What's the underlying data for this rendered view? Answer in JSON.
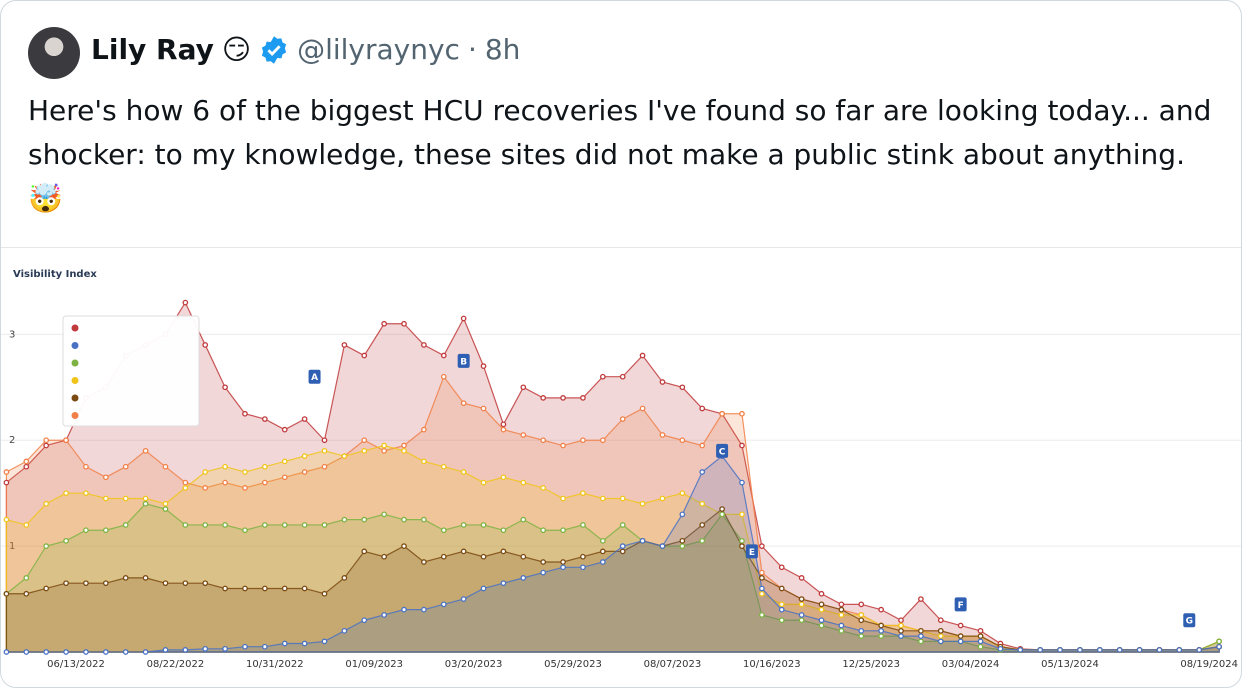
{
  "tweet": {
    "author_name": "Lily Ray",
    "author_emoji": "😏",
    "handle": "@lilyraynyc",
    "separator": "·",
    "time": "8h",
    "text": "Here's how 6 of the biggest HCU recoveries I've found so far are looking today... and shocker: to my knowledge, these sites did not make a public stink about anything. 🤯"
  },
  "chart_data": {
    "type": "area",
    "title": "Visibility Index",
    "x": [
      "04/25/2022",
      "05/09/2022",
      "05/23/2022",
      "06/06/2022",
      "06/20/2022",
      "07/04/2022",
      "07/18/2022",
      "08/01/2022",
      "08/15/2022",
      "08/29/2022",
      "09/12/2022",
      "09/26/2022",
      "10/10/2022",
      "10/24/2022",
      "11/07/2022",
      "11/21/2022",
      "12/05/2022",
      "12/19/2022",
      "01/02/2023",
      "01/16/2023",
      "01/30/2023",
      "02/13/2023",
      "02/27/2023",
      "03/13/2023",
      "03/27/2023",
      "04/10/2023",
      "04/24/2023",
      "05/08/2023",
      "05/22/2023",
      "06/05/2023",
      "06/19/2023",
      "07/03/2023",
      "07/17/2023",
      "07/31/2023",
      "08/14/2023",
      "08/28/2023",
      "09/11/2023",
      "09/25/2023",
      "10/09/2023",
      "10/23/2023",
      "11/06/2023",
      "11/20/2023",
      "12/04/2023",
      "12/18/2023",
      "01/01/2024",
      "01/15/2024",
      "01/29/2024",
      "02/12/2024",
      "02/26/2024",
      "03/11/2024",
      "03/25/2024",
      "04/08/2024",
      "04/22/2024",
      "05/06/2024",
      "05/20/2024",
      "06/03/2024",
      "06/17/2024",
      "07/01/2024",
      "07/15/2024",
      "07/29/2024",
      "08/12/2024",
      "08/26/2024"
    ],
    "series": [
      {
        "color": "#c0393b",
        "values": [
          1.6,
          1.75,
          1.95,
          2.0,
          2.4,
          2.5,
          2.8,
          2.9,
          3.0,
          3.3,
          2.9,
          2.5,
          2.25,
          2.2,
          2.1,
          2.2,
          2.0,
          2.9,
          2.8,
          3.1,
          3.1,
          2.9,
          2.8,
          3.15,
          2.7,
          2.15,
          2.5,
          2.4,
          2.4,
          2.4,
          2.6,
          2.6,
          2.8,
          2.55,
          2.5,
          2.3,
          2.25,
          1.95,
          1.0,
          0.8,
          0.7,
          0.55,
          0.45,
          0.45,
          0.4,
          0.3,
          0.5,
          0.3,
          0.25,
          0.2,
          0.08,
          0.03,
          0.02,
          0.02,
          0.02,
          0.02,
          0.02,
          0.02,
          0.02,
          0.02,
          0.02,
          0.1
        ]
      },
      {
        "color": "#f08048",
        "values": [
          1.7,
          1.8,
          2.0,
          2.0,
          1.75,
          1.65,
          1.75,
          1.9,
          1.75,
          1.6,
          1.55,
          1.6,
          1.55,
          1.6,
          1.65,
          1.7,
          1.75,
          1.85,
          2.0,
          1.9,
          1.95,
          2.1,
          2.6,
          2.35,
          2.3,
          2.1,
          2.05,
          2.0,
          1.95,
          2.0,
          2.0,
          2.2,
          2.3,
          2.05,
          2.0,
          1.95,
          2.25,
          2.25,
          0.75,
          0.6,
          0.5,
          0.45,
          0.4,
          0.35,
          0.25,
          0.25,
          0.2,
          0.2,
          0.15,
          0.15,
          0.05,
          0.02,
          0.02,
          0.02,
          0.02,
          0.02,
          0.02,
          0.02,
          0.02,
          0.02,
          0.02,
          0.05
        ]
      },
      {
        "color": "#f0c419",
        "values": [
          1.25,
          1.2,
          1.4,
          1.5,
          1.5,
          1.45,
          1.45,
          1.45,
          1.4,
          1.55,
          1.7,
          1.75,
          1.7,
          1.75,
          1.8,
          1.85,
          1.9,
          1.85,
          1.9,
          1.95,
          1.9,
          1.8,
          1.75,
          1.7,
          1.6,
          1.65,
          1.6,
          1.55,
          1.45,
          1.5,
          1.45,
          1.45,
          1.4,
          1.45,
          1.5,
          1.4,
          1.3,
          1.3,
          0.55,
          0.45,
          0.45,
          0.4,
          0.35,
          0.35,
          0.25,
          0.25,
          0.2,
          0.15,
          0.15,
          0.15,
          0.05,
          0.02,
          0.02,
          0.02,
          0.02,
          0.02,
          0.02,
          0.02,
          0.02,
          0.02,
          0.02,
          0.1
        ]
      },
      {
        "color": "#7cb342",
        "values": [
          0.55,
          0.7,
          1.0,
          1.05,
          1.15,
          1.15,
          1.2,
          1.4,
          1.35,
          1.2,
          1.2,
          1.2,
          1.15,
          1.2,
          1.2,
          1.2,
          1.2,
          1.25,
          1.25,
          1.3,
          1.25,
          1.25,
          1.15,
          1.2,
          1.2,
          1.15,
          1.25,
          1.15,
          1.15,
          1.2,
          1.05,
          1.2,
          1.05,
          1.0,
          1.0,
          1.05,
          1.3,
          1.05,
          0.35,
          0.3,
          0.3,
          0.25,
          0.2,
          0.15,
          0.15,
          0.15,
          0.1,
          0.1,
          0.1,
          0.05,
          0.02,
          0.02,
          0.02,
          0.02,
          0.02,
          0.02,
          0.02,
          0.02,
          0.02,
          0.02,
          0.02,
          0.1
        ]
      },
      {
        "color": "#7a4a12",
        "values": [
          0.55,
          0.55,
          0.6,
          0.65,
          0.65,
          0.65,
          0.7,
          0.7,
          0.65,
          0.65,
          0.65,
          0.6,
          0.6,
          0.6,
          0.6,
          0.6,
          0.55,
          0.7,
          0.95,
          0.9,
          1.0,
          0.85,
          0.9,
          0.95,
          0.9,
          0.95,
          0.9,
          0.85,
          0.85,
          0.9,
          0.95,
          0.95,
          1.05,
          1.0,
          1.05,
          1.2,
          1.35,
          1.0,
          0.7,
          0.6,
          0.5,
          0.45,
          0.4,
          0.3,
          0.25,
          0.2,
          0.2,
          0.2,
          0.15,
          0.15,
          0.05,
          0.02,
          0.02,
          0.02,
          0.02,
          0.02,
          0.02,
          0.02,
          0.02,
          0.02,
          0.02,
          0.05
        ]
      },
      {
        "color": "#4a72c4",
        "values": [
          0.0,
          0.0,
          0.0,
          0.0,
          0.0,
          0.0,
          0.0,
          0.0,
          0.02,
          0.02,
          0.03,
          0.03,
          0.05,
          0.05,
          0.08,
          0.08,
          0.1,
          0.2,
          0.3,
          0.35,
          0.4,
          0.4,
          0.45,
          0.5,
          0.6,
          0.65,
          0.7,
          0.75,
          0.8,
          0.8,
          0.85,
          1.0,
          1.05,
          1.0,
          1.3,
          1.7,
          1.85,
          1.6,
          0.6,
          0.4,
          0.35,
          0.3,
          0.25,
          0.2,
          0.2,
          0.15,
          0.15,
          0.1,
          0.1,
          0.1,
          0.03,
          0.02,
          0.02,
          0.02,
          0.02,
          0.02,
          0.02,
          0.02,
          0.02,
          0.02,
          0.02,
          0.05
        ]
      }
    ],
    "legend_colors": [
      "#c0393b",
      "#4a72c4",
      "#7cb342",
      "#f0c419",
      "#7a4a12",
      "#f08048"
    ],
    "ylim": [
      0,
      3.4
    ],
    "yticks": [
      1,
      2,
      3
    ],
    "grid": true,
    "xticks": [
      "06/13/2022",
      "08/22/2022",
      "10/31/2022",
      "01/09/2023",
      "03/20/2023",
      "05/29/2023",
      "08/07/2023",
      "10/16/2023",
      "12/25/2023",
      "03/04/2024",
      "05/13/2024",
      "08/19/2024"
    ],
    "annotations": [
      {
        "label": "A",
        "x": "11/28/2022",
        "y": 2.6
      },
      {
        "label": "B",
        "x": "03/13/2023",
        "y": 2.75
      },
      {
        "label": "C",
        "x": "09/11/2023",
        "y": 1.9
      },
      {
        "label": "E",
        "x": "10/02/2023",
        "y": 0.95
      },
      {
        "label": "F",
        "x": "02/26/2024",
        "y": 0.45
      },
      {
        "label": "G",
        "x": "08/05/2024",
        "y": 0.3
      }
    ]
  }
}
